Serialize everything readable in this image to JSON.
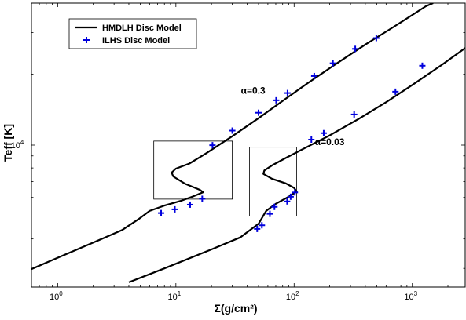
{
  "chart_data": {
    "type": "line",
    "xlabel": "Σ(g/cm²)",
    "ylabel": "Teff [K]",
    "x_scale": "log",
    "y_scale": "log",
    "xlim": [
      0.6,
      2800
    ],
    "ylim": [
      2500,
      40000
    ],
    "x_ticks": [
      1,
      10,
      100,
      1000
    ],
    "x_tick_labels": [
      {
        "base": "10",
        "exp": "0"
      },
      {
        "base": "10",
        "exp": "1"
      },
      {
        "base": "10",
        "exp": "2"
      },
      {
        "base": "10",
        "exp": "3"
      }
    ],
    "y_ticks": [
      10000
    ],
    "y_tick_labels": [
      {
        "base": "10",
        "exp": "4"
      }
    ],
    "legend": {
      "position": "top-left",
      "entries": [
        {
          "label": "HMDLH Disc Model",
          "marker": "line",
          "color": "#000000"
        },
        {
          "label": "ILHS Disc Model",
          "marker": "plus",
          "color": "#0000dd"
        }
      ]
    },
    "annotations": [
      {
        "text": "α=0.3",
        "x": 45,
        "y": 16500
      },
      {
        "text": "α=0.03",
        "x": 200,
        "y": 10000
      }
    ],
    "boxes": [
      {
        "x": [
          6.5,
          30
        ],
        "y": [
          5900,
          10400
        ]
      },
      {
        "x": [
          42,
          105
        ],
        "y": [
          5000,
          9800
        ]
      }
    ],
    "series": [
      {
        "name": "HMDLH Disc Model",
        "color": "#000000",
        "style": "line",
        "points": [
          [
            0.6,
            2980
          ],
          [
            1,
            3330
          ],
          [
            2,
            3860
          ],
          [
            3.5,
            4360
          ],
          [
            4.8,
            4840
          ],
          [
            6,
            5260
          ],
          [
            8,
            5540
          ],
          [
            11,
            5800
          ],
          [
            14,
            6060
          ],
          [
            17,
            6310
          ],
          [
            16,
            6460
          ],
          [
            12,
            6850
          ],
          [
            9.5,
            7360
          ],
          [
            9.2,
            7650
          ],
          [
            10,
            7950
          ],
          [
            13,
            8350
          ],
          [
            18,
            9220
          ],
          [
            30,
            10900
          ],
          [
            50,
            13000
          ],
          [
            80,
            15400
          ],
          [
            130,
            18300
          ],
          [
            220,
            21900
          ],
          [
            400,
            26700
          ],
          [
            700,
            31800
          ],
          [
            1300,
            38800
          ],
          [
            1500,
            40000
          ]
        ]
      },
      {
        "name": "HMDLH Disc Model (α=0.03)",
        "color": "#000000",
        "style": "line",
        "points": [
          [
            4,
            2620
          ],
          [
            8,
            3000
          ],
          [
            20,
            3610
          ],
          [
            35,
            4060
          ],
          [
            50,
            4640
          ],
          [
            58,
            5260
          ],
          [
            70,
            5640
          ],
          [
            90,
            6040
          ],
          [
            105,
            6360
          ],
          [
            100,
            6580
          ],
          [
            85,
            6880
          ],
          [
            65,
            7200
          ],
          [
            55,
            7550
          ],
          [
            56,
            7810
          ],
          [
            65,
            8200
          ],
          [
            85,
            8820
          ],
          [
            120,
            9650
          ],
          [
            200,
            11000
          ],
          [
            350,
            12900
          ],
          [
            600,
            15200
          ],
          [
            1000,
            18000
          ],
          [
            1800,
            22000
          ],
          [
            2800,
            25800
          ]
        ]
      },
      {
        "name": "ILHS Disc Model",
        "color": "#0000dd",
        "style": "plus",
        "points": [
          [
            7.5,
            5150
          ],
          [
            9.8,
            5340
          ],
          [
            13.2,
            5590
          ],
          [
            16.7,
            5920
          ],
          [
            20.4,
            9990
          ],
          [
            30,
            11520
          ],
          [
            50,
            13720
          ],
          [
            70.5,
            15490
          ],
          [
            88,
            16630
          ],
          [
            148,
            19630
          ],
          [
            213,
            22240
          ],
          [
            329,
            25590
          ],
          [
            496,
            28440
          ]
        ]
      },
      {
        "name": "ILHS Disc Model (α=0.03)",
        "color": "#0000dd",
        "style": "plus",
        "points": [
          [
            48.7,
            4410
          ],
          [
            53.4,
            4570
          ],
          [
            62.4,
            5110
          ],
          [
            68.2,
            5470
          ],
          [
            87.3,
            5770
          ],
          [
            93.5,
            6040
          ],
          [
            101.5,
            6300
          ],
          [
            140,
            10550
          ],
          [
            178,
            11240
          ],
          [
            322,
            13490
          ],
          [
            720,
            16850
          ],
          [
            1215,
            21710
          ]
        ]
      }
    ]
  }
}
